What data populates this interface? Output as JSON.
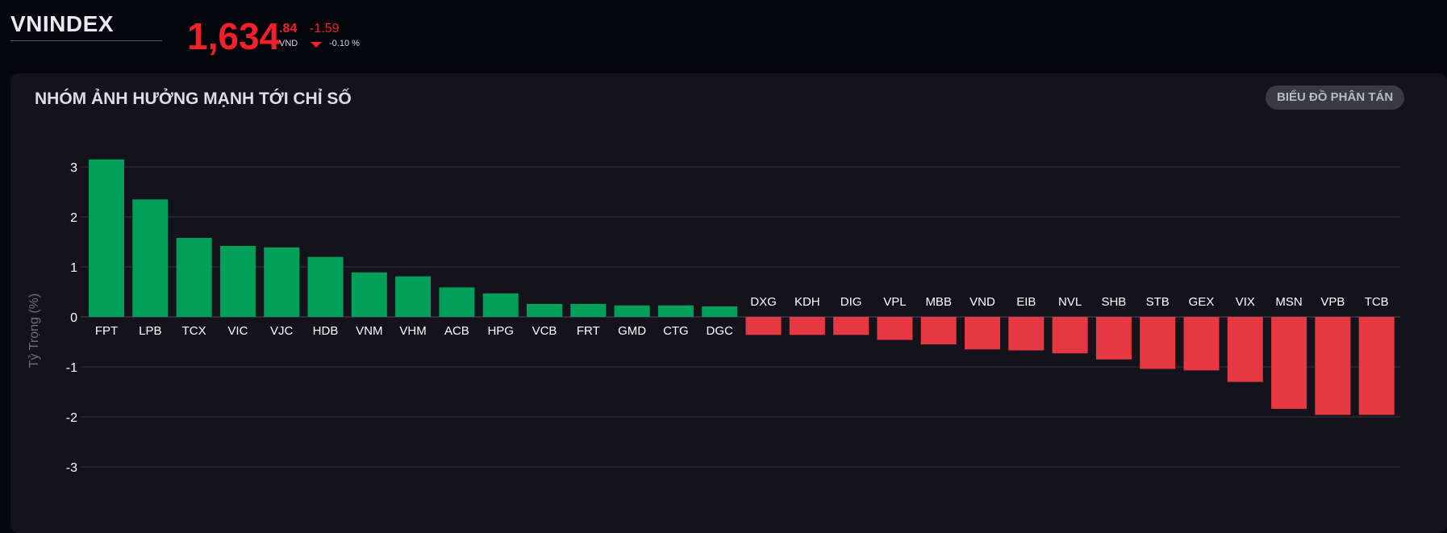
{
  "header": {
    "index_name": "VNINDEX",
    "price_main": "1,634",
    "price_decimal": ".84",
    "price_unit": "VND",
    "change_value": "-1.59",
    "change_percent": "-0.10 %"
  },
  "panel": {
    "title": "NHÓM ẢNH HƯỞNG MẠNH TỚI CHỈ SỐ",
    "scatter_button_label": "BIỂU ĐỒ PHÂN TÁN"
  },
  "colors": {
    "positive": "#00a05a",
    "negative": "#e63843",
    "accent_red": "#f3202c"
  },
  "chart_data": {
    "type": "bar",
    "title": "NHÓM ẢNH HƯỞNG MẠNH TỚI CHỈ SỐ",
    "xlabel": "",
    "ylabel": "Tỷ Trọng (%)",
    "ylim": [
      -3,
      3
    ],
    "yticks": [
      3,
      2,
      1,
      0,
      -1,
      -2,
      -3
    ],
    "grid": true,
    "categories": [
      "FPT",
      "LPB",
      "TCX",
      "VIC",
      "VJC",
      "HDB",
      "VNM",
      "VHM",
      "ACB",
      "HPG",
      "VCB",
      "FRT",
      "GMD",
      "CTG",
      "DGC",
      "DXG",
      "KDH",
      "DIG",
      "VPL",
      "MBB",
      "VND",
      "EIB",
      "NVL",
      "SHB",
      "STB",
      "GEX",
      "VIX",
      "MSN",
      "VPB",
      "TCB"
    ],
    "values": [
      3.15,
      2.35,
      1.58,
      1.42,
      1.39,
      1.2,
      0.89,
      0.81,
      0.59,
      0.47,
      0.26,
      0.26,
      0.23,
      0.23,
      0.21,
      -0.36,
      -0.36,
      -0.36,
      -0.46,
      -0.55,
      -0.65,
      -0.67,
      -0.73,
      -0.85,
      -1.04,
      -1.07,
      -1.3,
      -1.84,
      -1.96,
      -1.96
    ]
  }
}
